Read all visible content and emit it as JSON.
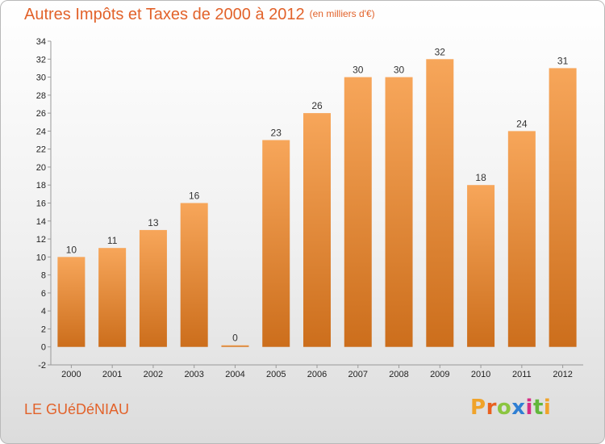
{
  "title": "Autres Impôts et Taxes de 2000 à 2012",
  "subtitle": "(en milliers d'€)",
  "location": "LE GUéDéNIAU",
  "logo": {
    "letters": [
      "P",
      "r",
      "o",
      "x",
      "i",
      "t",
      "i"
    ],
    "colors": [
      "#f0a32a",
      "#e9611f",
      "#8bc540",
      "#2f7fd3",
      "#d62d85",
      "#62b73c",
      "#f0a32a"
    ]
  },
  "colors": {
    "accent": "#e2622a",
    "bar_light": "#f7a65a",
    "bar_dark": "#cc6e1c"
  },
  "chart_data": {
    "type": "bar",
    "title": "Autres Impôts et Taxes de 2000 à 2012",
    "subtitle": "(en milliers d'€)",
    "categories": [
      "2000",
      "2001",
      "2002",
      "2003",
      "2004",
      "2005",
      "2006",
      "2007",
      "2008",
      "2009",
      "2010",
      "2011",
      "2012"
    ],
    "values": [
      10,
      11,
      13,
      16,
      0,
      23,
      26,
      30,
      30,
      32,
      18,
      24,
      31
    ],
    "value_labels": [
      "10",
      "11",
      "13",
      "16",
      "0",
      "23",
      "26",
      "30",
      "30",
      "32",
      "18",
      "24",
      "31"
    ],
    "ylim": [
      -2,
      34
    ],
    "yticks": [
      "-2",
      "0",
      "2",
      "4",
      "6",
      "8",
      "10",
      "12",
      "14",
      "16",
      "18",
      "20",
      "22",
      "24",
      "26",
      "28",
      "30",
      "32",
      "34"
    ],
    "xlabel": "",
    "ylabel": "",
    "grid": false,
    "legend": "none"
  }
}
